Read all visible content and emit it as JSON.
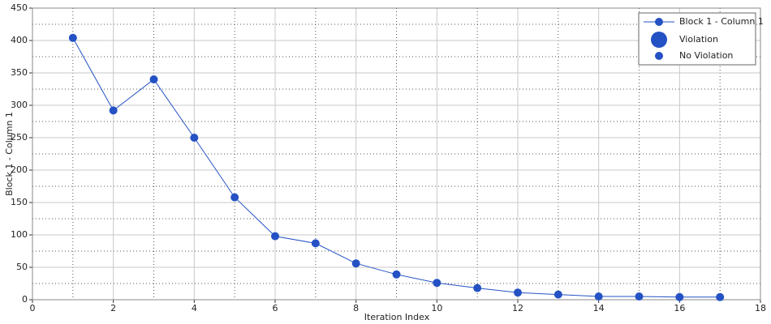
{
  "chart_data": {
    "type": "line",
    "x_label": "Iteration Index",
    "y_label": "Block 1 - Column 1",
    "x": [
      1,
      2,
      3,
      4,
      5,
      6,
      7,
      8,
      9,
      10,
      11,
      12,
      13,
      14,
      15,
      16,
      17
    ],
    "series": [
      {
        "name": "Block 1 - Column 1",
        "color": "#2452c4",
        "values": [
          404,
          292,
          340,
          250,
          158,
          98,
          87,
          56,
          39,
          26,
          18,
          11,
          8,
          5,
          5,
          4,
          4
        ]
      }
    ],
    "xlim": [
      0,
      18
    ],
    "xticks": [
      0,
      2,
      4,
      6,
      8,
      10,
      12,
      14,
      16,
      18
    ],
    "x_minor_ticks": [
      1,
      3,
      5,
      7,
      9,
      11,
      13,
      15,
      17
    ],
    "ylim": [
      0,
      450
    ],
    "yticks": [
      0,
      50,
      100,
      150,
      200,
      250,
      300,
      350,
      400,
      450
    ],
    "y_minor_ticks": [
      25,
      75,
      125,
      175,
      225,
      275,
      325,
      375,
      425
    ],
    "grid": true,
    "legend_position": "upper right",
    "legend_markers": [
      "Violation",
      "No Violation"
    ]
  }
}
